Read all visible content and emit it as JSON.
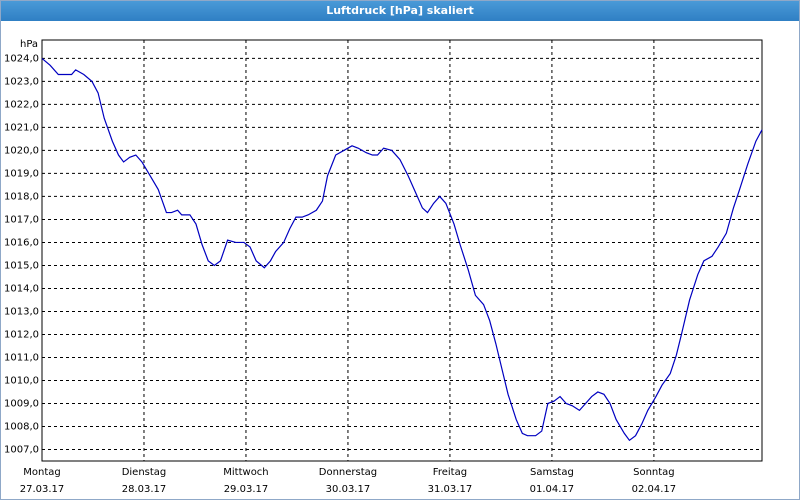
{
  "window_title": "Luftdruck [hPa] skaliert",
  "chart_data": {
    "type": "line",
    "y_unit": "hPa",
    "xlim": [
      0,
      7.06
    ],
    "ylim": [
      1006.5,
      1024.8
    ],
    "xticks": [
      {
        "value": 0,
        "label": "Montag"
      },
      {
        "value": 1,
        "label": "Dienstag"
      },
      {
        "value": 2,
        "label": "Mittwoch"
      },
      {
        "value": 3,
        "label": "Donnerstag"
      },
      {
        "value": 4,
        "label": "Freitag"
      },
      {
        "value": 5,
        "label": "Samstag"
      },
      {
        "value": 6,
        "label": "Sonntag"
      }
    ],
    "xtick_dates": [
      "27.03.17",
      "28.03.17",
      "29.03.17",
      "30.03.17",
      "31.03.17",
      "01.04.17",
      "02.04.17"
    ],
    "yticks": [
      {
        "value": 1007,
        "label": "1007,0"
      },
      {
        "value": 1008,
        "label": "1008,0"
      },
      {
        "value": 1009,
        "label": "1009,0"
      },
      {
        "value": 1010,
        "label": "1010,0"
      },
      {
        "value": 1011,
        "label": "1011,0"
      },
      {
        "value": 1012,
        "label": "1012,0"
      },
      {
        "value": 1013,
        "label": "1013,0"
      },
      {
        "value": 1014,
        "label": "1014,0"
      },
      {
        "value": 1015,
        "label": "1015,0"
      },
      {
        "value": 1016,
        "label": "1016,0"
      },
      {
        "value": 1017,
        "label": "1017,0"
      },
      {
        "value": 1018,
        "label": "1018,0"
      },
      {
        "value": 1019,
        "label": "1019,0"
      },
      {
        "value": 1020,
        "label": "1020,0"
      },
      {
        "value": 1021,
        "label": "1021,0"
      },
      {
        "value": 1022,
        "label": "1022,0"
      },
      {
        "value": 1023,
        "label": "1023,0"
      },
      {
        "value": 1024,
        "label": "1024,0"
      }
    ],
    "grid": true,
    "series": [
      {
        "color": "#0000c0",
        "x": [
          0,
          0.08,
          0.16,
          0.24,
          0.29,
          0.33,
          0.41,
          0.49,
          0.55,
          0.61,
          0.69,
          0.75,
          0.8,
          0.86,
          0.92,
          0.98,
          1.06,
          1.14,
          1.22,
          1.27,
          1.33,
          1.37,
          1.45,
          1.51,
          1.57,
          1.63,
          1.69,
          1.75,
          1.82,
          1.9,
          1.98,
          2.04,
          2.1,
          2.18,
          2.24,
          2.29,
          2.37,
          2.43,
          2.49,
          2.55,
          2.61,
          2.69,
          2.75,
          2.8,
          2.88,
          2.96,
          3.04,
          3.1,
          3.18,
          3.24,
          3.29,
          3.35,
          3.43,
          3.51,
          3.59,
          3.67,
          3.73,
          3.78,
          3.84,
          3.9,
          3.96,
          4.04,
          4.1,
          4.18,
          4.25,
          4.33,
          4.39,
          4.45,
          4.51,
          4.57,
          4.65,
          4.71,
          4.76,
          4.84,
          4.9,
          4.96,
          5.02,
          5.08,
          5.14,
          5.2,
          5.27,
          5.33,
          5.39,
          5.45,
          5.51,
          5.57,
          5.63,
          5.71,
          5.76,
          5.82,
          5.88,
          5.94,
          6.02,
          6.08,
          6.16,
          6.22,
          6.27,
          6.35,
          6.43,
          6.49,
          6.57,
          6.63,
          6.71,
          6.78,
          6.84,
          6.92,
          7.0,
          7.06
        ],
        "values": [
          1024.0,
          1023.7,
          1023.3,
          1023.3,
          1023.3,
          1023.5,
          1023.3,
          1023.0,
          1022.5,
          1021.4,
          1020.4,
          1019.8,
          1019.5,
          1019.7,
          1019.8,
          1019.5,
          1018.9,
          1018.3,
          1017.3,
          1017.3,
          1017.4,
          1017.2,
          1017.2,
          1016.8,
          1015.9,
          1015.2,
          1015.0,
          1015.2,
          1016.1,
          1016.0,
          1016.0,
          1015.8,
          1015.2,
          1014.9,
          1015.2,
          1015.6,
          1016.0,
          1016.6,
          1017.1,
          1017.1,
          1017.2,
          1017.4,
          1017.8,
          1018.9,
          1019.8,
          1020.0,
          1020.2,
          1020.1,
          1019.9,
          1019.8,
          1019.8,
          1020.1,
          1020.0,
          1019.6,
          1018.9,
          1018.1,
          1017.5,
          1017.3,
          1017.7,
          1018.0,
          1017.7,
          1016.8,
          1015.9,
          1014.8,
          1013.7,
          1013.3,
          1012.6,
          1011.6,
          1010.5,
          1009.4,
          1008.3,
          1007.7,
          1007.6,
          1007.6,
          1007.8,
          1009.0,
          1009.1,
          1009.3,
          1009.0,
          1008.9,
          1008.7,
          1009.0,
          1009.3,
          1009.5,
          1009.4,
          1009.0,
          1008.3,
          1007.7,
          1007.4,
          1007.6,
          1008.1,
          1008.7,
          1009.3,
          1009.8,
          1010.3,
          1011.1,
          1012.0,
          1013.5,
          1014.6,
          1015.2,
          1015.4,
          1015.8,
          1016.4,
          1017.5,
          1018.3,
          1019.4,
          1020.4,
          1020.9
        ]
      }
    ]
  }
}
